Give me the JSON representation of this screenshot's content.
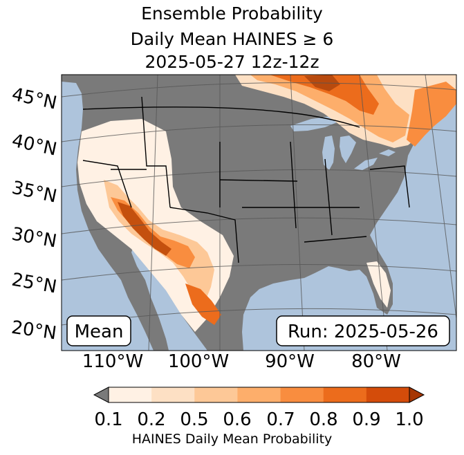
{
  "title": {
    "line1": "Ensemble Probability",
    "line2": "Daily Mean HAINES ≥ 6",
    "line3": "2025-05-27 12z-12z"
  },
  "map": {
    "lat_labels": [
      "45°N",
      "40°N",
      "35°N",
      "30°N",
      "25°N",
      "20°N"
    ],
    "lon_labels": [
      "110°W",
      "100°W",
      "90°W",
      "80°W"
    ],
    "mean_label": "Mean",
    "run_label": "Run: 2025-05-26",
    "colors": {
      "ocean": "#aec4dc",
      "land_below_threshold": "#7a7a7a",
      "borders": "#000000",
      "graticule": "#555555"
    }
  },
  "colorbar": {
    "ticks": [
      "0.1",
      "0.2",
      "0.5",
      "0.6",
      "0.7",
      "0.8",
      "0.9",
      "1.0"
    ],
    "colors": [
      "#fff1e4",
      "#fde0c4",
      "#fdc897",
      "#fdae6b",
      "#f98d3f",
      "#ec6c1c",
      "#d44c0a"
    ],
    "under_color": "#7a7a7a",
    "over_color": "#a63603",
    "label": "HAINES Daily Mean Probability"
  }
}
